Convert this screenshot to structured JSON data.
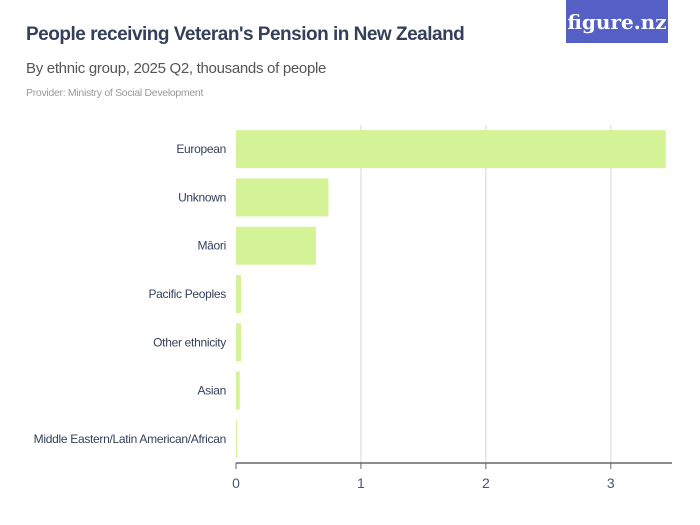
{
  "header": {
    "title": "People receiving Veteran's Pension in New Zealand",
    "subtitle": "By ethnic group, 2025 Q2, thousands of people",
    "provider": "Provider: Ministry of Social Development",
    "logo": "figure.nz"
  },
  "chart_data": {
    "type": "bar",
    "orientation": "horizontal",
    "categories": [
      "European",
      "Unknown",
      "Māori",
      "Pacific Peoples",
      "Other ethnicity",
      "Asian",
      "Middle Eastern/Latin American/African"
    ],
    "values": [
      3.44,
      0.74,
      0.64,
      0.04,
      0.04,
      0.03,
      0.003
    ],
    "xlim": [
      0,
      3.49
    ],
    "xticks": [
      0,
      1,
      2,
      3
    ],
    "grid": true,
    "colors": {
      "bar": "#d4f396",
      "grid": "#e3e3e3",
      "axis": "#666666"
    }
  }
}
